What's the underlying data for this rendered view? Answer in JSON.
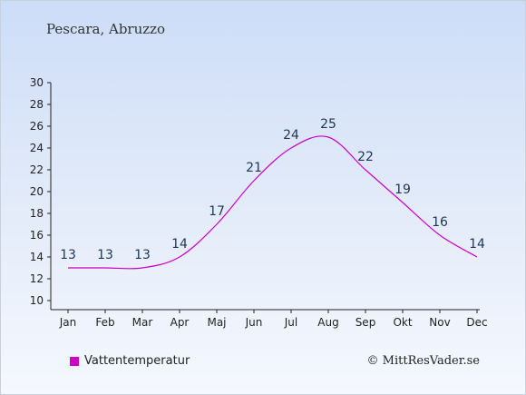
{
  "header": {
    "location": "Pescara, Abruzzo"
  },
  "legend": {
    "label": "Vattentemperatur",
    "color": "#cc00cc"
  },
  "credit": {
    "text": "© MittResVader.se"
  },
  "chart_data": {
    "type": "line",
    "title": "Pescara, Abruzzo",
    "categories": [
      "Jan",
      "Feb",
      "Mar",
      "Apr",
      "Maj",
      "Jun",
      "Jul",
      "Aug",
      "Sep",
      "Okt",
      "Nov",
      "Dec"
    ],
    "series": [
      {
        "name": "Vattentemperatur",
        "values": [
          13,
          13,
          13,
          14,
          17,
          21,
          24,
          25,
          22,
          19,
          16,
          14
        ],
        "color": "#cc00cc"
      }
    ],
    "ylim": [
      10,
      30
    ],
    "yticks": [
      10,
      12,
      14,
      16,
      18,
      20,
      22,
      24,
      26,
      28,
      30
    ],
    "grid": false,
    "legend_position": "bottom-left"
  }
}
